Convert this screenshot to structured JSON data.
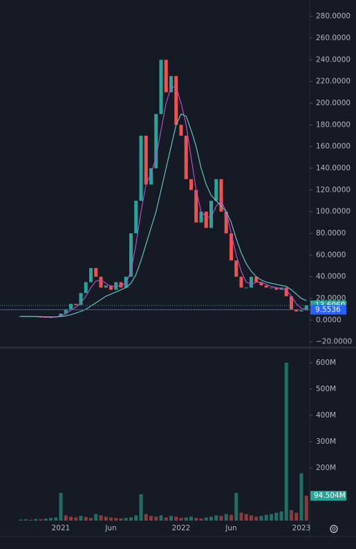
{
  "chart_data": [
    {
      "type": "candlestick",
      "ylim": [
        -24,
        290
      ],
      "yticks": [
        {
          "value": 280,
          "label": "280.0000"
        },
        {
          "value": 260,
          "label": "260.0000"
        },
        {
          "value": 240,
          "label": "240.0000"
        },
        {
          "value": 220,
          "label": "220.0000"
        },
        {
          "value": 200,
          "label": "200.0000"
        },
        {
          "value": 180,
          "label": "180.0000"
        },
        {
          "value": 160,
          "label": "160.0000"
        },
        {
          "value": 140,
          "label": "140.0000"
        },
        {
          "value": 120,
          "label": "120.0000"
        },
        {
          "value": 100,
          "label": "100.0000"
        },
        {
          "value": 80,
          "label": "80.0000"
        },
        {
          "value": 60,
          "label": "60.0000"
        },
        {
          "value": 40,
          "label": "40.0000"
        },
        {
          "value": 20,
          "label": "20.0000"
        },
        {
          "value": 0,
          "label": "0.0000"
        },
        {
          "value": -20,
          "label": "−20.0000"
        }
      ],
      "series": [
        {
          "color": "#26a69a",
          "down_color": "#ef5350",
          "values": [
            3.5,
            3.2,
            3.6,
            3.0,
            2.8,
            2.5,
            2.6,
            3.2,
            6,
            10,
            15,
            14,
            25,
            35,
            48,
            40,
            30,
            32,
            28,
            35,
            30,
            40,
            80,
            110,
            170,
            125,
            140,
            190,
            240,
            210,
            225,
            180,
            170,
            130,
            120,
            90,
            100,
            85,
            110,
            130,
            100,
            80,
            55,
            40,
            30,
            30,
            40,
            35,
            32,
            30,
            30,
            28,
            30,
            22,
            10,
            8,
            9,
            13.606
          ]
        },
        {
          "color": "#b44fc8",
          "values": [
            3.4,
            3.3,
            3.3,
            3.2,
            3.0,
            2.8,
            2.7,
            2.8,
            4,
            6,
            9,
            12,
            16,
            22,
            30,
            36,
            37,
            34,
            31,
            31,
            32,
            34,
            45,
            70,
            100,
            125,
            135,
            150,
            175,
            200,
            215,
            215,
            200,
            180,
            150,
            120,
            100,
            95,
            95,
            105,
            110,
            100,
            80,
            60,
            45,
            35,
            33,
            35,
            35,
            33,
            31,
            30,
            29,
            28,
            22,
            15,
            11,
            10
          ]
        },
        {
          "color": "#5ec4c0",
          "values": [
            3.5,
            3.4,
            3.4,
            3.3,
            3.2,
            3.1,
            3.0,
            3.0,
            3.3,
            4,
            5,
            6.5,
            8,
            10,
            13,
            16,
            19,
            22,
            24,
            26,
            28,
            30,
            34,
            42,
            55,
            70,
            85,
            100,
            120,
            140,
            160,
            180,
            190,
            188,
            175,
            160,
            140,
            125,
            115,
            110,
            105,
            100,
            90,
            75,
            62,
            52,
            45,
            40,
            37,
            35,
            34,
            33,
            32,
            31,
            28,
            24,
            20,
            18
          ]
        }
      ],
      "price_lines": [
        {
          "value": 13.606,
          "label": "13.6060",
          "color": "#26a69a",
          "dash": true
        },
        {
          "value": 9.5536,
          "label": "9.5536",
          "color": "#2962ff",
          "dash": false
        }
      ]
    },
    {
      "type": "bar",
      "categories": [
        null,
        null,
        null,
        null,
        null,
        null,
        null,
        null,
        "2021",
        null,
        null,
        null,
        null,
        null,
        null,
        null,
        null,
        null,
        "Jun",
        null,
        null,
        null,
        null,
        null,
        null,
        null,
        null,
        null,
        null,
        null,
        null,
        null,
        "2022",
        null,
        null,
        null,
        null,
        null,
        null,
        null,
        null,
        null,
        "Jun",
        null,
        null,
        null,
        null,
        null,
        null,
        null,
        null,
        null,
        null,
        null,
        null,
        null,
        "2023",
        null
      ],
      "ylim": [
        0,
        650
      ],
      "yticks": [
        {
          "value": 200,
          "label": "200M"
        },
        {
          "value": 300,
          "label": "300M"
        },
        {
          "value": 400,
          "label": "400M"
        },
        {
          "value": 500,
          "label": "500M"
        },
        {
          "value": 600,
          "label": "600M"
        }
      ],
      "values": [
        4,
        5,
        3,
        6,
        5,
        8,
        10,
        12,
        105,
        20,
        15,
        12,
        18,
        14,
        10,
        25,
        20,
        15,
        12,
        10,
        8,
        10,
        12,
        20,
        100,
        25,
        18,
        15,
        20,
        12,
        18,
        15,
        10,
        12,
        15,
        10,
        8,
        12,
        15,
        20,
        18,
        25,
        22,
        105,
        30,
        25,
        20,
        15,
        18,
        22,
        25,
        30,
        35,
        600,
        40,
        30,
        180,
        94.504
      ],
      "last_value": {
        "value": 94.504,
        "label": "94.504M",
        "color": "#26a69a"
      }
    }
  ]
}
